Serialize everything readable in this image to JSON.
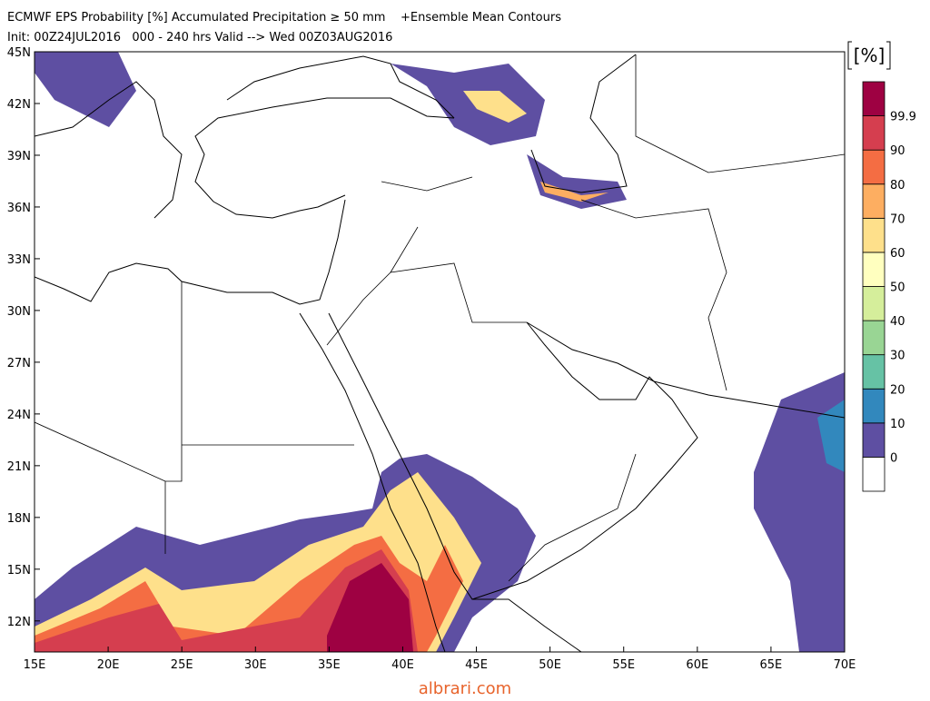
{
  "header": {
    "title": "ECMWF EPS Probability [%] Accumulated Precipitation ≥ 50 mm    +Ensemble Mean Contours",
    "subtitle": "Init: 00Z24JUL2016   000 - 240 hrs Valid --> Wed 00Z03AUG2016"
  },
  "map": {
    "lonlim": [
      15,
      70
    ],
    "latlim": [
      10.2,
      45
    ],
    "lonticks": [
      {
        "value": 15,
        "label": "15E"
      },
      {
        "value": 20,
        "label": "20E"
      },
      {
        "value": 25,
        "label": "25E"
      },
      {
        "value": 30,
        "label": "30E"
      },
      {
        "value": 35,
        "label": "35E"
      },
      {
        "value": 40,
        "label": "40E"
      },
      {
        "value": 45,
        "label": "45E"
      },
      {
        "value": 50,
        "label": "50E"
      },
      {
        "value": 55,
        "label": "55E"
      },
      {
        "value": 60,
        "label": "60E"
      },
      {
        "value": 65,
        "label": "65E"
      },
      {
        "value": 70,
        "label": "70E"
      }
    ],
    "latticks": [
      {
        "value": 45,
        "label": "45N"
      },
      {
        "value": 42,
        "label": "42N"
      },
      {
        "value": 39,
        "label": "39N"
      },
      {
        "value": 36,
        "label": "36N"
      },
      {
        "value": 33,
        "label": "33N"
      },
      {
        "value": 30,
        "label": "30N"
      },
      {
        "value": 27,
        "label": "27N"
      },
      {
        "value": 24,
        "label": "24N"
      },
      {
        "value": 21,
        "label": "21N"
      },
      {
        "value": 18,
        "label": "18N"
      },
      {
        "value": 15,
        "label": "15N"
      },
      {
        "value": 12,
        "label": "12N"
      }
    ]
  },
  "colorbar": {
    "unit": "[%]",
    "levels": [
      0,
      10,
      20,
      30,
      40,
      50,
      60,
      70,
      80,
      90,
      99.9
    ],
    "colors": [
      "#ffffff",
      "#5e4fa2",
      "#3288bd",
      "#66c2a5",
      "#99d594",
      "#d5ee9b",
      "#ffffbf",
      "#fee08b",
      "#fdae61",
      "#f46d43",
      "#d53e4f",
      "#9e0142"
    ]
  },
  "footer": {
    "watermark": "albrari.com"
  }
}
